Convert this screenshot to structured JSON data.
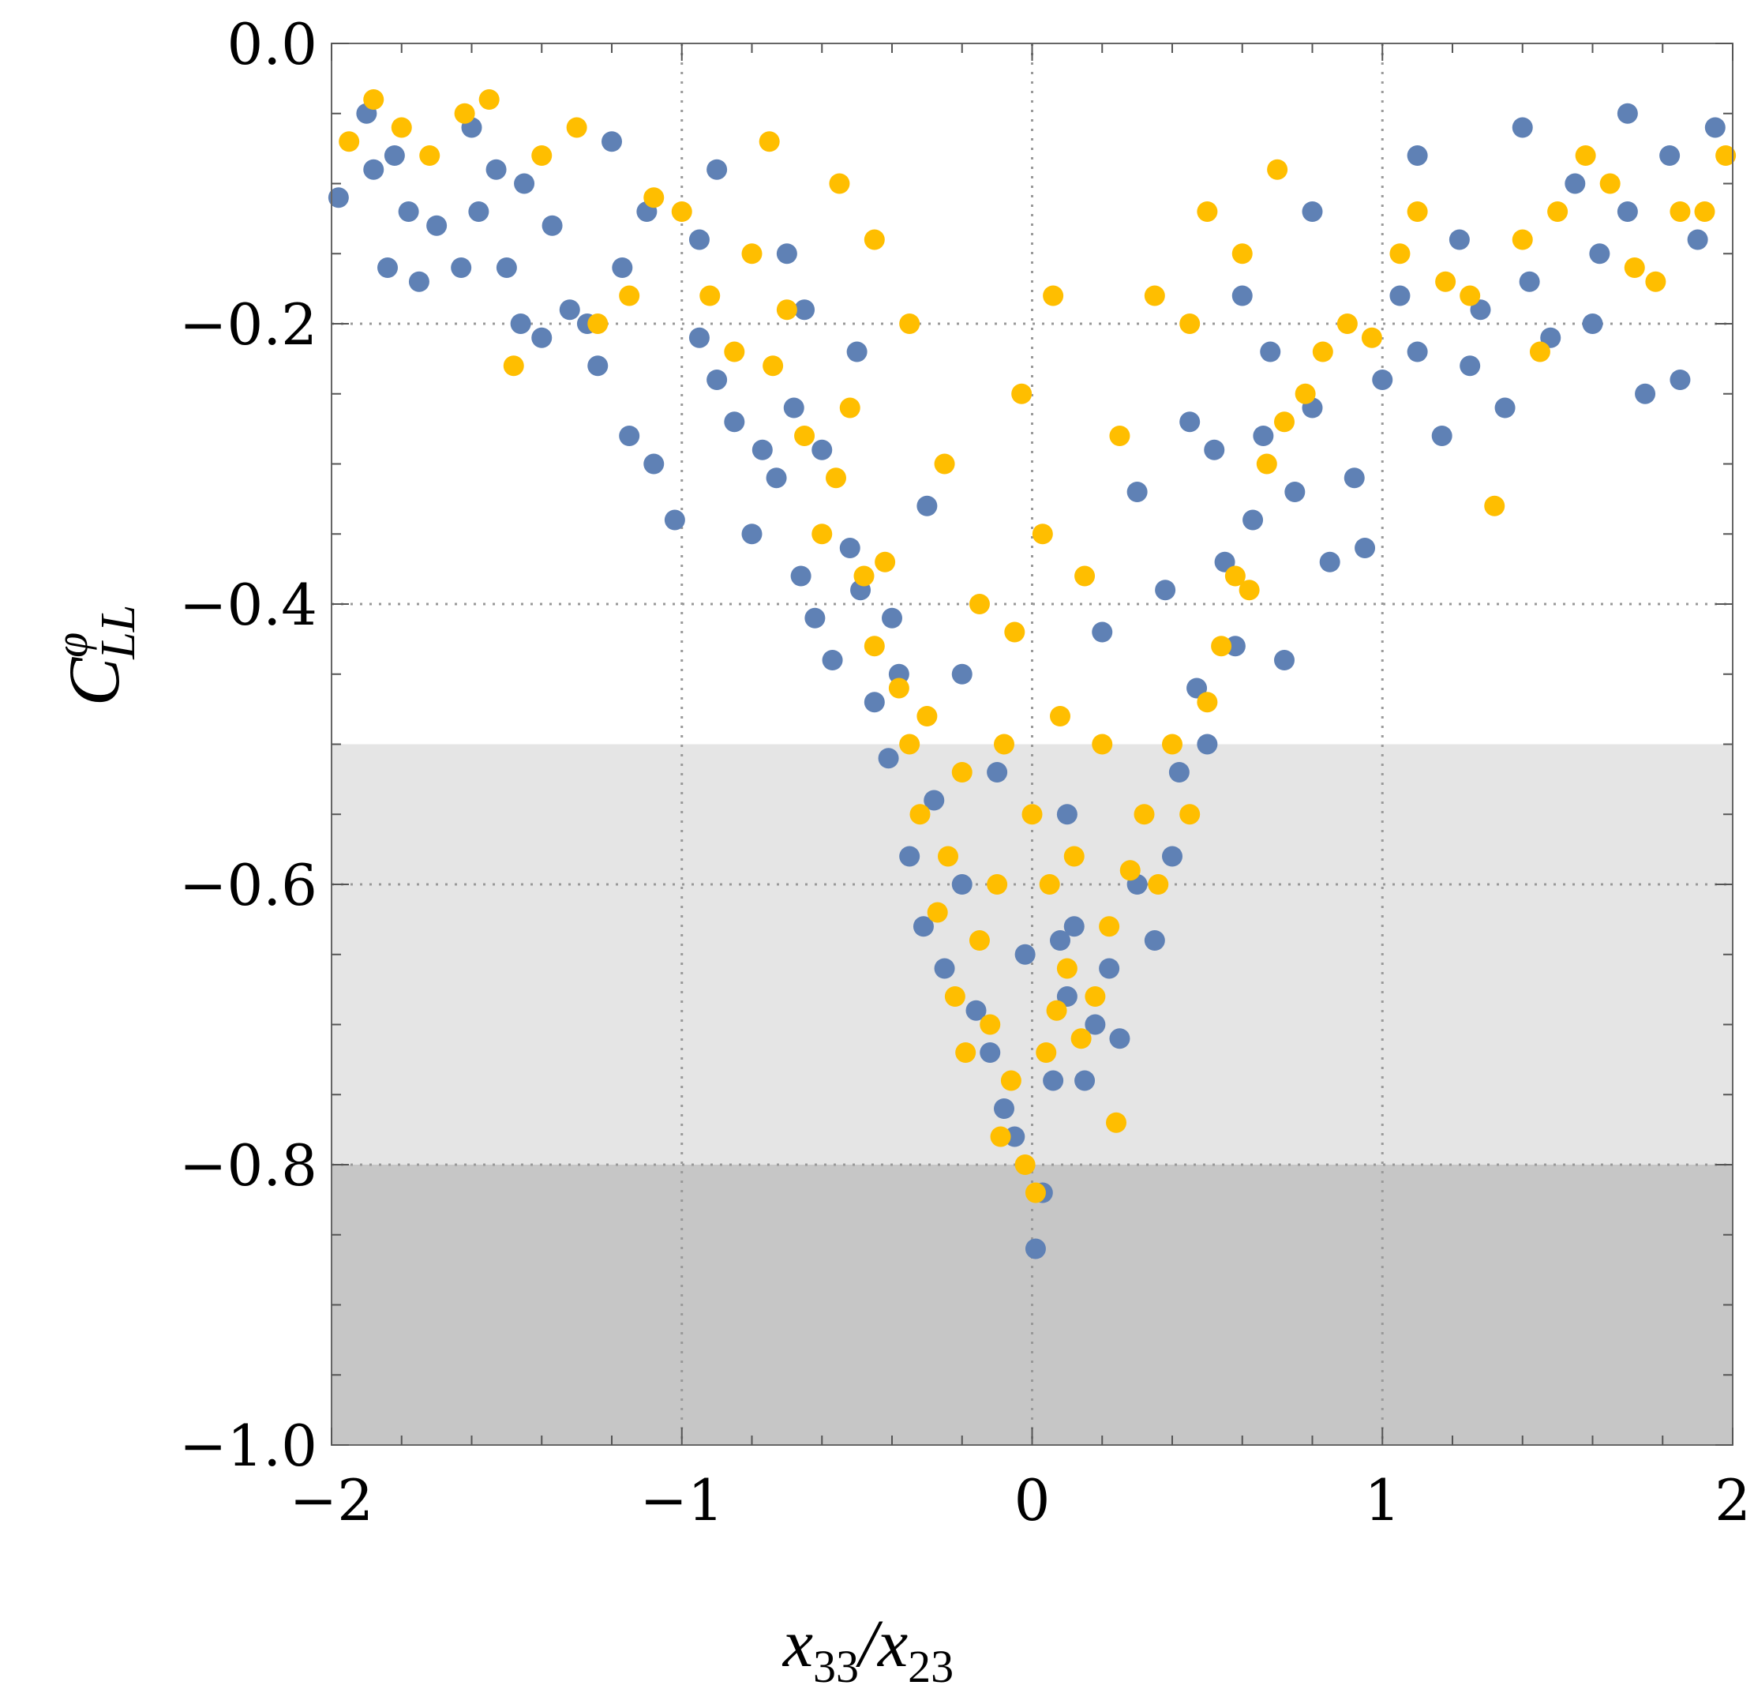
{
  "chart_data": {
    "type": "scatter",
    "title": "",
    "xlabel": {
      "base": "x",
      "sub1": "33",
      "slash": "/",
      "base2": "x",
      "sub2": "23"
    },
    "ylabel": {
      "base": "C",
      "sup": "φ",
      "sub": "LL"
    },
    "xlim": [
      -2,
      2
    ],
    "ylim": [
      -1,
      0
    ],
    "x_ticks": [
      {
        "value": -2,
        "label": "−2"
      },
      {
        "value": -1,
        "label": "−1"
      },
      {
        "value": 0,
        "label": "0"
      },
      {
        "value": 1,
        "label": "1"
      },
      {
        "value": 2,
        "label": "2"
      }
    ],
    "y_ticks": [
      {
        "value": 0,
        "label": "0.0"
      },
      {
        "value": -0.2,
        "label": "−0.2"
      },
      {
        "value": -0.4,
        "label": "−0.4"
      },
      {
        "value": -0.6,
        "label": "−0.6"
      },
      {
        "value": -0.8,
        "label": "−0.8"
      },
      {
        "value": -1.0,
        "label": "−1.0"
      }
    ],
    "grid": "dotted",
    "legend": "none",
    "shaded_regions": [
      {
        "ymin": -0.8,
        "ymax": -0.5,
        "color": "#e5e5e5"
      },
      {
        "ymin": -1.0,
        "ymax": -0.8,
        "color": "#c6c6c6"
      }
    ],
    "series": [
      {
        "color": "#5f81b5",
        "points": [
          [
            -1.98,
            -0.11
          ],
          [
            -1.88,
            -0.09
          ],
          [
            -1.84,
            -0.16
          ],
          [
            -1.82,
            -0.08
          ],
          [
            -1.78,
            -0.12
          ],
          [
            -1.75,
            -0.17
          ],
          [
            -1.7,
            -0.13
          ],
          [
            -1.63,
            -0.16
          ],
          [
            -1.58,
            -0.12
          ],
          [
            -1.53,
            -0.09
          ],
          [
            -1.5,
            -0.16
          ],
          [
            -1.46,
            -0.2
          ],
          [
            -1.4,
            -0.21
          ],
          [
            -1.37,
            -0.13
          ],
          [
            -1.32,
            -0.19
          ],
          [
            -1.27,
            -0.2
          ],
          [
            -1.24,
            -0.23
          ],
          [
            -1.17,
            -0.16
          ],
          [
            -1.15,
            -0.28
          ],
          [
            -1.08,
            -0.3
          ],
          [
            -1.02,
            -0.34
          ],
          [
            -0.95,
            -0.21
          ],
          [
            -0.9,
            -0.24
          ],
          [
            -0.85,
            -0.27
          ],
          [
            -0.8,
            -0.35
          ],
          [
            -0.77,
            -0.29
          ],
          [
            -0.73,
            -0.31
          ],
          [
            -0.68,
            -0.26
          ],
          [
            -0.66,
            -0.38
          ],
          [
            -0.62,
            -0.41
          ],
          [
            -0.6,
            -0.29
          ],
          [
            -0.57,
            -0.44
          ],
          [
            -0.52,
            -0.36
          ],
          [
            -0.49,
            -0.39
          ],
          [
            -0.45,
            -0.47
          ],
          [
            -0.41,
            -0.51
          ],
          [
            -0.38,
            -0.45
          ],
          [
            -0.35,
            -0.58
          ],
          [
            -0.31,
            -0.63
          ],
          [
            -0.28,
            -0.54
          ],
          [
            -0.25,
            -0.66
          ],
          [
            -0.2,
            -0.6
          ],
          [
            -0.16,
            -0.69
          ],
          [
            -0.12,
            -0.72
          ],
          [
            -0.08,
            -0.76
          ],
          [
            -0.05,
            -0.78
          ],
          [
            0.01,
            -0.86
          ],
          [
            0.03,
            -0.82
          ],
          [
            0.06,
            -0.74
          ],
          [
            0.1,
            -0.68
          ],
          [
            0.15,
            -0.74
          ],
          [
            0.18,
            -0.7
          ],
          [
            0.22,
            -0.66
          ],
          [
            0.25,
            -0.71
          ],
          [
            0.3,
            -0.6
          ],
          [
            0.35,
            -0.64
          ],
          [
            0.4,
            -0.58
          ],
          [
            0.42,
            -0.52
          ],
          [
            0.47,
            -0.46
          ],
          [
            0.5,
            -0.5
          ],
          [
            0.55,
            -0.37
          ],
          [
            0.58,
            -0.43
          ],
          [
            0.63,
            -0.34
          ],
          [
            0.66,
            -0.28
          ],
          [
            0.72,
            -0.44
          ],
          [
            0.75,
            -0.32
          ],
          [
            0.8,
            -0.26
          ],
          [
            0.85,
            -0.37
          ],
          [
            0.92,
            -0.31
          ],
          [
            0.95,
            -0.36
          ],
          [
            1.0,
            -0.24
          ],
          [
            1.05,
            -0.18
          ],
          [
            1.1,
            -0.22
          ],
          [
            1.17,
            -0.28
          ],
          [
            1.22,
            -0.14
          ],
          [
            1.28,
            -0.19
          ],
          [
            1.35,
            -0.26
          ],
          [
            1.42,
            -0.17
          ],
          [
            1.48,
            -0.21
          ],
          [
            1.55,
            -0.1
          ],
          [
            1.62,
            -0.15
          ],
          [
            1.7,
            -0.12
          ],
          [
            1.75,
            -0.25
          ],
          [
            1.82,
            -0.08
          ],
          [
            1.85,
            -0.24
          ],
          [
            1.9,
            -0.14
          ],
          [
            1.95,
            -0.06
          ],
          [
            -1.9,
            -0.05
          ],
          [
            -1.6,
            -0.06
          ],
          [
            -1.2,
            -0.07
          ],
          [
            -0.9,
            -0.09
          ],
          [
            -0.7,
            -0.15
          ],
          [
            -0.5,
            -0.22
          ],
          [
            -0.3,
            -0.33
          ],
          [
            -0.2,
            -0.45
          ],
          [
            -0.1,
            -0.52
          ],
          [
            0.1,
            -0.55
          ],
          [
            0.2,
            -0.42
          ],
          [
            0.3,
            -0.32
          ],
          [
            0.45,
            -0.27
          ],
          [
            0.6,
            -0.18
          ],
          [
            0.8,
            -0.12
          ],
          [
            1.1,
            -0.08
          ],
          [
            1.4,
            -0.06
          ],
          [
            1.7,
            -0.05
          ],
          [
            -1.45,
            -0.1
          ],
          [
            -1.1,
            -0.12
          ],
          [
            -0.65,
            -0.19
          ],
          [
            0.38,
            -0.39
          ],
          [
            0.52,
            -0.29
          ],
          [
            0.68,
            -0.22
          ],
          [
            1.25,
            -0.23
          ],
          [
            1.6,
            -0.2
          ],
          [
            -0.95,
            -0.14
          ],
          [
            -0.4,
            -0.41
          ],
          [
            0.12,
            -0.63
          ],
          [
            -0.02,
            -0.65
          ],
          [
            0.08,
            -0.64
          ]
        ]
      },
      {
        "color": "#ffbe00",
        "points": [
          [
            -1.95,
            -0.07
          ],
          [
            -1.88,
            -0.04
          ],
          [
            -1.8,
            -0.06
          ],
          [
            -1.72,
            -0.08
          ],
          [
            -1.62,
            -0.05
          ],
          [
            -1.55,
            -0.04
          ],
          [
            -1.48,
            -0.23
          ],
          [
            -1.4,
            -0.08
          ],
          [
            -1.3,
            -0.06
          ],
          [
            -1.24,
            -0.2
          ],
          [
            -1.15,
            -0.18
          ],
          [
            -1.08,
            -0.11
          ],
          [
            -1.0,
            -0.12
          ],
          [
            -0.92,
            -0.18
          ],
          [
            -0.85,
            -0.22
          ],
          [
            -0.8,
            -0.15
          ],
          [
            -0.74,
            -0.23
          ],
          [
            -0.7,
            -0.19
          ],
          [
            -0.65,
            -0.28
          ],
          [
            -0.6,
            -0.35
          ],
          [
            -0.56,
            -0.31
          ],
          [
            -0.52,
            -0.26
          ],
          [
            -0.48,
            -0.38
          ],
          [
            -0.45,
            -0.43
          ],
          [
            -0.42,
            -0.37
          ],
          [
            -0.38,
            -0.46
          ],
          [
            -0.35,
            -0.5
          ],
          [
            -0.32,
            -0.55
          ],
          [
            -0.3,
            -0.48
          ],
          [
            -0.27,
            -0.62
          ],
          [
            -0.24,
            -0.58
          ],
          [
            -0.22,
            -0.68
          ],
          [
            -0.19,
            -0.72
          ],
          [
            -0.15,
            -0.64
          ],
          [
            -0.12,
            -0.7
          ],
          [
            -0.09,
            -0.78
          ],
          [
            -0.06,
            -0.74
          ],
          [
            -0.02,
            -0.8
          ],
          [
            0.01,
            -0.82
          ],
          [
            0.04,
            -0.72
          ],
          [
            0.07,
            -0.69
          ],
          [
            0.1,
            -0.66
          ],
          [
            0.14,
            -0.71
          ],
          [
            0.18,
            -0.68
          ],
          [
            0.22,
            -0.63
          ],
          [
            0.24,
            -0.77
          ],
          [
            0.28,
            -0.59
          ],
          [
            0.32,
            -0.55
          ],
          [
            0.36,
            -0.6
          ],
          [
            0.4,
            -0.5
          ],
          [
            0.45,
            -0.55
          ],
          [
            0.5,
            -0.47
          ],
          [
            0.54,
            -0.43
          ],
          [
            0.58,
            -0.38
          ],
          [
            0.62,
            -0.39
          ],
          [
            0.67,
            -0.3
          ],
          [
            0.72,
            -0.27
          ],
          [
            0.78,
            -0.25
          ],
          [
            0.83,
            -0.22
          ],
          [
            0.9,
            -0.2
          ],
          [
            0.97,
            -0.21
          ],
          [
            1.05,
            -0.15
          ],
          [
            1.1,
            -0.12
          ],
          [
            1.18,
            -0.17
          ],
          [
            1.25,
            -0.18
          ],
          [
            1.32,
            -0.33
          ],
          [
            1.4,
            -0.14
          ],
          [
            1.45,
            -0.22
          ],
          [
            1.5,
            -0.12
          ],
          [
            1.58,
            -0.08
          ],
          [
            1.65,
            -0.1
          ],
          [
            1.72,
            -0.16
          ],
          [
            1.78,
            -0.17
          ],
          [
            1.85,
            -0.12
          ],
          [
            1.92,
            -0.12
          ],
          [
            1.98,
            -0.08
          ],
          [
            -0.55,
            -0.1
          ],
          [
            -0.35,
            -0.2
          ],
          [
            -0.25,
            -0.3
          ],
          [
            -0.15,
            -0.4
          ],
          [
            -0.08,
            -0.5
          ],
          [
            0.0,
            -0.55
          ],
          [
            0.08,
            -0.48
          ],
          [
            0.15,
            -0.38
          ],
          [
            0.25,
            -0.28
          ],
          [
            0.35,
            -0.18
          ],
          [
            0.5,
            -0.12
          ],
          [
            0.7,
            -0.09
          ],
          [
            -0.75,
            -0.07
          ],
          [
            -0.45,
            -0.14
          ],
          [
            0.45,
            -0.2
          ],
          [
            0.6,
            -0.15
          ],
          [
            -0.2,
            -0.52
          ],
          [
            0.2,
            -0.5
          ],
          [
            -0.1,
            -0.6
          ],
          [
            0.05,
            -0.6
          ],
          [
            0.12,
            -0.58
          ],
          [
            -0.05,
            -0.42
          ],
          [
            0.03,
            -0.35
          ],
          [
            -0.03,
            -0.25
          ],
          [
            0.06,
            -0.18
          ]
        ]
      }
    ]
  }
}
